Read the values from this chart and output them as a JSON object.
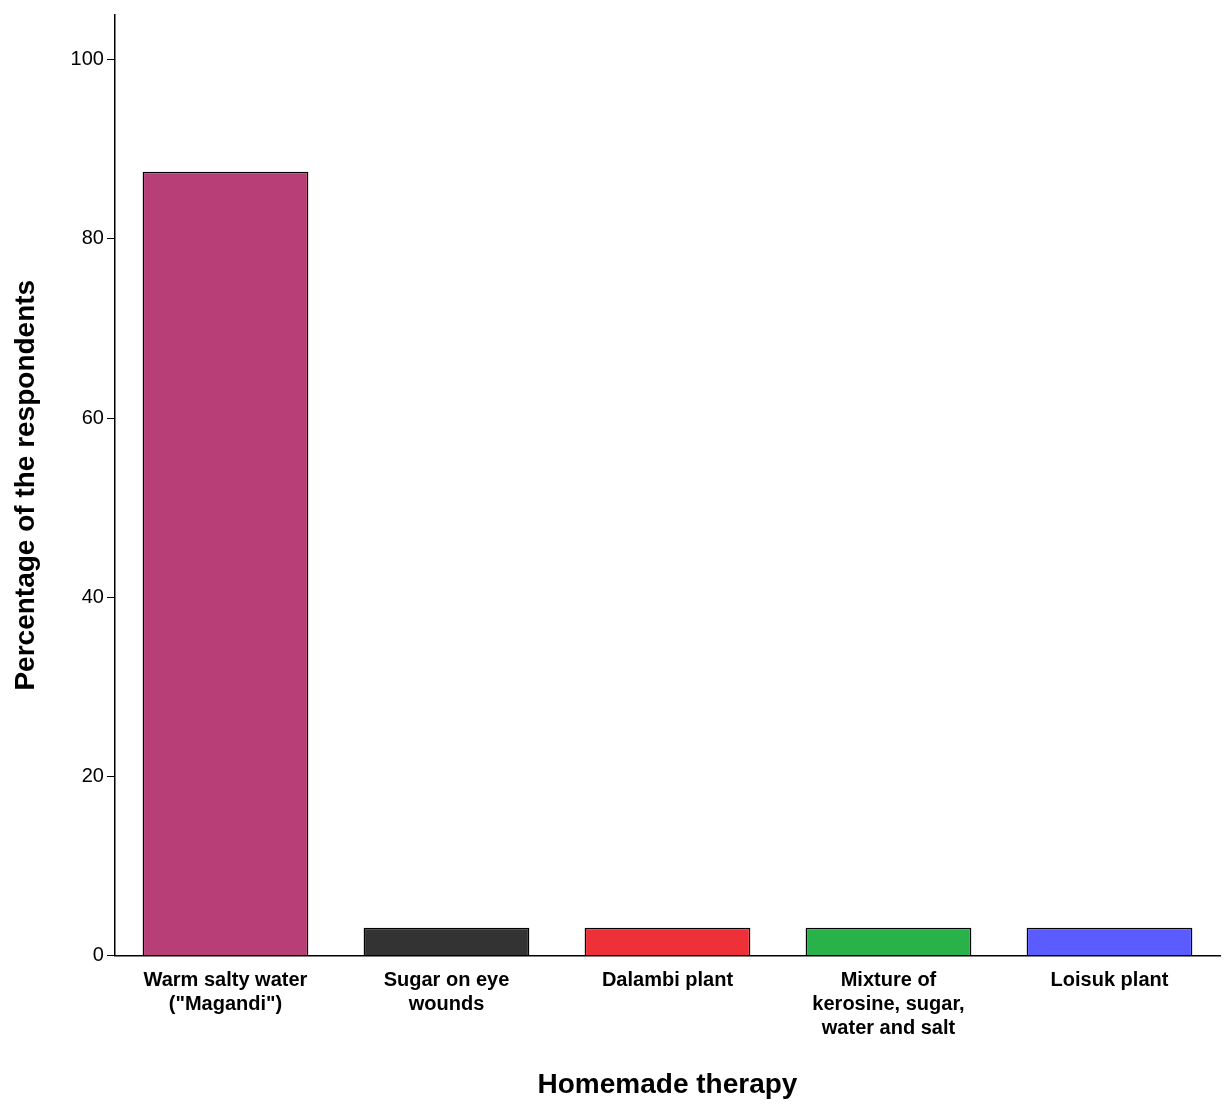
{
  "chart_data": {
    "type": "bar",
    "xlabel": "Homemade therapy",
    "ylabel": "Percentage of the respondents",
    "categories": [
      "Warm salty water (\"Magandi\")",
      "Sugar on eye wounds",
      "Dalambi plant",
      "Mixture of kerosine, sugar, water and salt",
      "Loisuk plant"
    ],
    "values": [
      87.5,
      3.1,
      3.1,
      3.1,
      3.1
    ],
    "colors": [
      "#b83e78",
      "#333333",
      "#ee3039",
      "#2ab24a",
      "#5a5cff"
    ],
    "ylim": [
      0,
      105
    ],
    "yticks": [
      0,
      20,
      40,
      60,
      80,
      100
    ],
    "grid": false,
    "legend": false
  }
}
